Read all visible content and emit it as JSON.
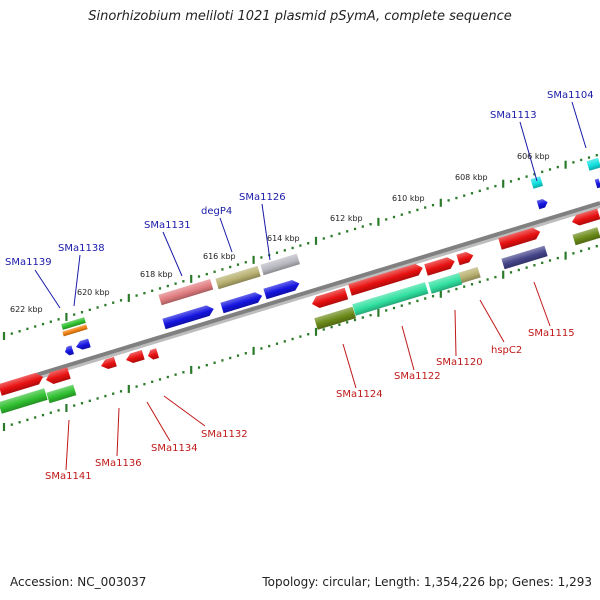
{
  "title": "Sinorhizobium meliloti 1021 plasmid pSymA, complete sequence",
  "footer": {
    "accession": "Accession: NC_003037",
    "summary": "Topology: circular; Length: 1,354,226 bp; Genes: 1,293"
  },
  "colors": {
    "backbone": "#808080",
    "tick": "#2a7a2a",
    "label_top": "#1a1aa8",
    "label_bottom": "#c01818"
  },
  "kbp_labels": [
    "606 kbp",
    "608 kbp",
    "610 kbp",
    "612 kbp",
    "614 kbp",
    "616 kbp",
    "618 kbp",
    "620 kbp",
    "622 kbp"
  ],
  "genes_top": [
    "SMa1104",
    "SMa1113",
    "SMa1126",
    "degP4",
    "SMa1131",
    "SMa1138",
    "SMa1139"
  ],
  "genes_bottom": [
    "SMa1115",
    "hspC2",
    "SMa1120",
    "SMa1122",
    "SMa1124",
    "SMa1132",
    "SMa1134",
    "SMa1136",
    "SMa1141"
  ]
}
